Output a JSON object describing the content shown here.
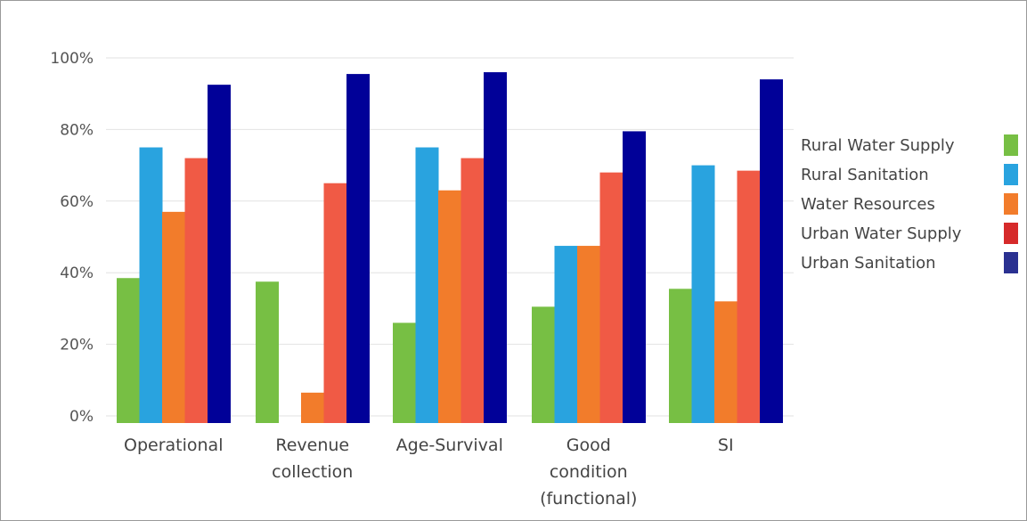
{
  "chart_data": {
    "type": "bar",
    "title": "",
    "xlabel": "",
    "ylabel": "",
    "ylim": [
      0,
      100
    ],
    "yticks": [
      0,
      20,
      40,
      60,
      80,
      100
    ],
    "ytick_labels": [
      "0%",
      "20%",
      "40%",
      "60%",
      "80%",
      "100%"
    ],
    "grid": true,
    "legend_position": "right",
    "categories": [
      [
        "Operational"
      ],
      [
        "Revenue",
        "collection"
      ],
      [
        "Age-Survival"
      ],
      [
        "Good",
        "condition",
        "(functional)"
      ],
      [
        "SI"
      ]
    ],
    "series": [
      {
        "name": "Rural Water Supply",
        "color": "#77bf44",
        "values": [
          38.5,
          37.5,
          26,
          30.5,
          35.5
        ]
      },
      {
        "name": "Rural Sanitation",
        "color": "#29a3df",
        "values": [
          75,
          0,
          75,
          47.5,
          70
        ]
      },
      {
        "name": "Water Resources",
        "color": "#f27c2b",
        "values": [
          57,
          6.5,
          63,
          47.5,
          32
        ]
      },
      {
        "name": "Urban Water Supply",
        "color": "#f05a45",
        "values": [
          72,
          65,
          72,
          68,
          68.5
        ]
      },
      {
        "name": "Urban Sanitation",
        "color": "#010198",
        "values": [
          92.5,
          95.5,
          96,
          79.5,
          94
        ]
      }
    ],
    "legend_swatch_colors": [
      "#77bf44",
      "#29a3df",
      "#f27c2b",
      "#d62a2a",
      "#2a3191"
    ]
  }
}
